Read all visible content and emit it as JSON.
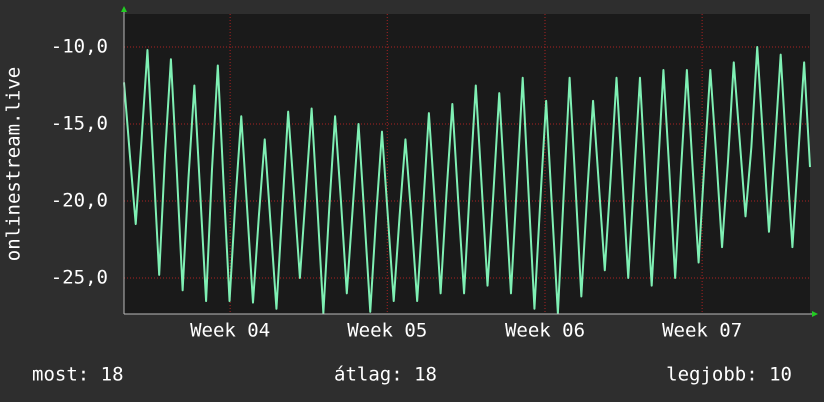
{
  "chart_data": {
    "type": "line",
    "ylabel": "onlinestream.live",
    "x": [
      0,
      1,
      2,
      3,
      4,
      5,
      6,
      7,
      8,
      9,
      10,
      11,
      12,
      13,
      14,
      15,
      16,
      17,
      18,
      19,
      20,
      21,
      22,
      23,
      24,
      25,
      26,
      27,
      28,
      29,
      30,
      31,
      32,
      33,
      34,
      35,
      36,
      37,
      38,
      39,
      40,
      41,
      42,
      43,
      44,
      45,
      46,
      47,
      48,
      49,
      50,
      51,
      52,
      53,
      54,
      55,
      56,
      57,
      58,
      59,
      60,
      61,
      62,
      63,
      64,
      65,
      66,
      67,
      68,
      69,
      70,
      71,
      72,
      73,
      74,
      75,
      76,
      77,
      78,
      79,
      80,
      81,
      82,
      83,
      84,
      85,
      86,
      87,
      88,
      89,
      90,
      91,
      92,
      93,
      94,
      95,
      96,
      97,
      98,
      99,
      100,
      101,
      102,
      103,
      104,
      105,
      106,
      107,
      108,
      109,
      110,
      111,
      112,
      113,
      114,
      115,
      116,
      117
    ],
    "series": [
      {
        "color": "#7ff0b4",
        "values": [
          -12.3,
          -17.0,
          -21.5,
          -16.0,
          -10.2,
          -17.5,
          -24.8,
          -17.0,
          -10.8,
          -18.0,
          -25.8,
          -18.5,
          -12.5,
          -19.5,
          -26.5,
          -18.0,
          -11.2,
          -19.0,
          -26.5,
          -20.0,
          -14.5,
          -20.5,
          -26.6,
          -21.0,
          -16.0,
          -21.5,
          -27.0,
          -20.5,
          -14.2,
          -19.5,
          -25.0,
          -19.5,
          -14.0,
          -20.5,
          -27.3,
          -20.5,
          -14.5,
          -20.0,
          -26.0,
          -20.5,
          -15.0,
          -21.0,
          -27.2,
          -21.0,
          -15.5,
          -21.0,
          -26.5,
          -21.0,
          -16.0,
          -21.0,
          -26.5,
          -20.5,
          -14.3,
          -20.0,
          -26.0,
          -19.5,
          -13.7,
          -20.0,
          -26.0,
          -19.0,
          -12.5,
          -19.0,
          -25.5,
          -19.5,
          -13.0,
          -19.5,
          -26.0,
          -19.0,
          -12.0,
          -19.5,
          -27.0,
          -20.0,
          -13.5,
          -20.5,
          -27.3,
          -19.5,
          -12.0,
          -19.0,
          -26.2,
          -19.5,
          -13.5,
          -19.0,
          -24.5,
          -18.5,
          -12.0,
          -18.5,
          -25.0,
          -18.5,
          -12.0,
          -19.0,
          -25.5,
          -18.5,
          -11.5,
          -18.0,
          -25.0,
          -18.0,
          -11.5,
          -18.0,
          -24.0,
          -17.5,
          -11.5,
          -17.0,
          -23.0,
          -17.5,
          -11.0,
          -16.0,
          -21.0,
          -16.5,
          -10.0,
          -16.0,
          -22.0,
          -16.5,
          -10.5,
          -17.0,
          -23.0,
          -17.0,
          -11.0,
          -17.8
        ]
      }
    ],
    "xlim": [
      0,
      117
    ],
    "xticks": [
      {
        "value": 18.1,
        "label": "Week 04"
      },
      {
        "value": 44.9,
        "label": "Week 05"
      },
      {
        "value": 71.8,
        "label": "Week 06"
      },
      {
        "value": 98.6,
        "label": "Week 07"
      }
    ],
    "ylim": [
      -27.34,
      -7.86
    ],
    "yticks": [
      {
        "value": -25,
        "label": "-25,0"
      },
      {
        "value": -20,
        "label": "-20,0"
      },
      {
        "value": -15,
        "label": "-15,0"
      },
      {
        "value": -10,
        "label": "-10,0"
      }
    ],
    "grid": true,
    "footer": [
      "most: 18",
      "átlag: 18",
      "legjobb: 10"
    ]
  }
}
